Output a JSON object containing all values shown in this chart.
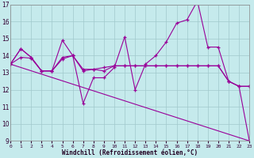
{
  "xlabel": "Windchill (Refroidissement éolien,°C)",
  "bg_color": "#c5eaec",
  "grid_color": "#a0c8cc",
  "line_color": "#990099",
  "xlim": [
    0,
    23
  ],
  "ylim": [
    9,
    17
  ],
  "yticks": [
    9,
    10,
    11,
    12,
    13,
    14,
    15,
    16,
    17
  ],
  "xticks": [
    0,
    1,
    2,
    3,
    4,
    5,
    6,
    7,
    8,
    9,
    10,
    11,
    12,
    13,
    14,
    15,
    16,
    17,
    18,
    19,
    20,
    21,
    22,
    23
  ],
  "lines": [
    {
      "x": [
        0,
        1,
        2,
        3,
        4,
        5,
        6,
        7,
        8,
        9,
        10,
        11,
        12,
        13,
        14,
        15,
        16,
        17,
        18,
        19,
        20,
        21,
        22,
        23
      ],
      "y": [
        13.5,
        14.4,
        13.9,
        13.1,
        13.1,
        14.9,
        14.0,
        11.2,
        12.7,
        12.7,
        13.3,
        15.1,
        12.0,
        13.5,
        14.0,
        14.8,
        15.9,
        16.1,
        17.2,
        14.5,
        14.5,
        12.5,
        12.2,
        9.0
      ],
      "marker": true
    },
    {
      "x": [
        0,
        1,
        2,
        3,
        4,
        5,
        6,
        7,
        8,
        9,
        10,
        11,
        12,
        13,
        14,
        15,
        16,
        17,
        18,
        19,
        20,
        21,
        22,
        23
      ],
      "y": [
        13.5,
        14.4,
        13.9,
        13.1,
        13.1,
        13.9,
        14.0,
        13.2,
        13.2,
        13.3,
        13.4,
        13.4,
        13.4,
        13.4,
        13.4,
        13.4,
        13.4,
        13.4,
        13.4,
        13.4,
        13.4,
        12.5,
        12.2,
        12.2
      ],
      "marker": true
    },
    {
      "x": [
        0,
        1,
        2,
        3,
        4,
        5,
        6,
        7,
        8,
        9,
        10,
        11,
        12,
        13,
        14,
        15,
        16,
        17,
        18,
        19,
        20,
        21,
        22,
        23
      ],
      "y": [
        13.5,
        13.9,
        13.85,
        13.1,
        13.1,
        13.8,
        14.0,
        13.1,
        13.2,
        13.1,
        13.4,
        13.4,
        13.4,
        13.4,
        13.4,
        13.4,
        13.4,
        13.4,
        13.4,
        13.4,
        13.4,
        12.5,
        12.2,
        12.2
      ],
      "marker": true
    },
    {
      "x": [
        0,
        23
      ],
      "y": [
        13.5,
        9.0
      ],
      "marker": false
    }
  ]
}
